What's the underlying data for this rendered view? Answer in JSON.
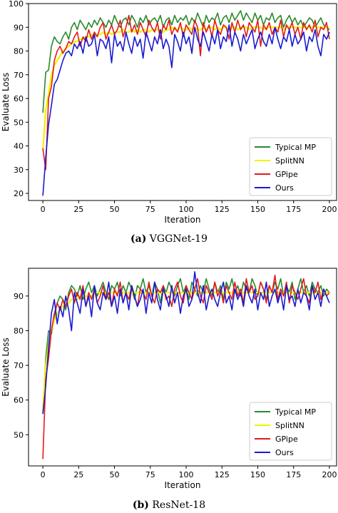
{
  "captions": [
    {
      "letter": "(a)",
      "text": "VGGNet-19"
    },
    {
      "letter": "(b)",
      "text": "ResNet-18"
    }
  ],
  "series_colors": {
    "Typical MP": "#2a8a2a",
    "SplitNN": "#f2f200",
    "GPipe": "#e21a1a",
    "Ours": "#1a1ad0"
  },
  "chart_data": [
    {
      "type": "line",
      "title": "",
      "xlabel": "Iteration",
      "ylabel": "Evaluate Loss",
      "xlim": [
        -10,
        205
      ],
      "ylim": [
        17,
        100
      ],
      "xticks": [
        0,
        25,
        50,
        75,
        100,
        125,
        150,
        175,
        200
      ],
      "yticks": [
        20,
        30,
        40,
        50,
        60,
        70,
        80,
        90,
        100
      ],
      "legend_position": "lower-right",
      "x_note": "values sampled every 2 iterations, from 0 to 200",
      "series": [
        {
          "name": "Typical MP",
          "color": "#2a8a2a",
          "values": [
            54,
            71,
            72,
            82,
            86,
            84,
            83,
            86,
            88,
            85,
            90,
            92,
            89,
            93,
            91,
            89,
            92,
            90,
            93,
            91,
            94,
            92,
            90,
            93,
            91,
            95,
            92,
            90,
            93,
            94,
            91,
            95,
            93,
            90,
            94,
            92,
            95,
            91,
            93,
            94,
            92,
            95,
            90,
            93,
            94,
            91,
            95,
            92,
            94,
            93,
            95,
            91,
            94,
            92,
            96,
            93,
            90,
            95,
            92,
            94,
            93,
            96,
            91,
            94,
            95,
            92,
            96,
            93,
            95,
            97,
            93,
            96,
            94,
            92,
            96,
            93,
            95,
            91,
            94,
            93,
            96,
            92,
            94,
            95,
            90,
            93,
            95,
            92,
            94,
            91,
            93,
            90,
            92,
            94,
            93,
            90,
            92,
            94,
            91,
            90,
            89
          ]
        },
        {
          "name": "SplitNN",
          "color": "#f2f200",
          "values": [
            38,
            55,
            62,
            70,
            74,
            76,
            78,
            80,
            81,
            82,
            83,
            84,
            84,
            85,
            85,
            86,
            86,
            87,
            86,
            87,
            87,
            88,
            87,
            88,
            87,
            88,
            88,
            88,
            89,
            88,
            88,
            89,
            88,
            89,
            88,
            89,
            89,
            88,
            89,
            89,
            89,
            89,
            88,
            89,
            89,
            90,
            89,
            89,
            90,
            89,
            89,
            90,
            89,
            90,
            89,
            89,
            90,
            89,
            90,
            90,
            89,
            90,
            89,
            90,
            90,
            89,
            90,
            90,
            89,
            90,
            90,
            90,
            89,
            90,
            90,
            90,
            90,
            89,
            90,
            90,
            90,
            90,
            90,
            90,
            89,
            90,
            90,
            90,
            90,
            90,
            90,
            90,
            90,
            90,
            90,
            90,
            90,
            90,
            90,
            90,
            90
          ]
        },
        {
          "name": "GPipe",
          "color": "#e21a1a",
          "values": [
            39,
            30,
            60,
            65,
            76,
            80,
            82,
            79,
            81,
            84,
            83,
            86,
            88,
            82,
            86,
            84,
            89,
            85,
            88,
            86,
            90,
            92,
            85,
            88,
            91,
            87,
            89,
            93,
            86,
            90,
            95,
            88,
            91,
            87,
            92,
            89,
            86,
            93,
            90,
            88,
            92,
            85,
            91,
            89,
            93,
            87,
            90,
            88,
            92,
            86,
            91,
            89,
            87,
            93,
            90,
            78,
            92,
            88,
            91,
            86,
            93,
            89,
            87,
            91,
            90,
            85,
            92,
            88,
            93,
            89,
            91,
            86,
            92,
            90,
            88,
            93,
            82,
            91,
            89,
            92,
            87,
            90,
            88,
            93,
            86,
            91,
            89,
            92,
            87,
            90,
            85,
            92,
            89,
            91,
            88,
            93,
            86,
            90,
            89,
            92,
            85
          ]
        },
        {
          "name": "Ours",
          "color": "#1a1ad0",
          "values": [
            19,
            35,
            49,
            57,
            66,
            68,
            72,
            76,
            79,
            80,
            78,
            83,
            81,
            84,
            79,
            86,
            82,
            83,
            87,
            78,
            85,
            84,
            81,
            86,
            75,
            87,
            82,
            84,
            80,
            88,
            83,
            79,
            86,
            82,
            85,
            77,
            88,
            84,
            80,
            86,
            83,
            89,
            81,
            85,
            82,
            73,
            87,
            84,
            80,
            88,
            83,
            86,
            79,
            90,
            85,
            82,
            88,
            84,
            80,
            87,
            83,
            89,
            81,
            86,
            84,
            91,
            82,
            88,
            85,
            80,
            87,
            83,
            86,
            89,
            81,
            85,
            88,
            84,
            82,
            87,
            83,
            90,
            85,
            81,
            86,
            84,
            89,
            82,
            87,
            83,
            85,
            88,
            80,
            86,
            84,
            89,
            82,
            78,
            87,
            85,
            88
          ]
        }
      ]
    },
    {
      "type": "line",
      "title": "",
      "xlabel": "Iteration",
      "ylabel": "Evaluate Loss",
      "xlim": [
        -10,
        205
      ],
      "ylim": [
        41,
        98
      ],
      "xticks": [
        0,
        25,
        50,
        75,
        100,
        125,
        150,
        175,
        200
      ],
      "yticks": [
        50,
        60,
        70,
        80,
        90
      ],
      "legend_position": "lower-right",
      "x_note": "values sampled every 2 iterations, from 0 to 200",
      "series": [
        {
          "name": "Typical MP",
          "color": "#2a8a2a",
          "values": [
            56,
            72,
            80,
            79,
            84,
            88,
            90,
            89,
            86,
            91,
            93,
            92,
            90,
            93,
            89,
            92,
            94,
            91,
            93,
            90,
            92,
            94,
            91,
            89,
            93,
            92,
            94,
            90,
            93,
            91,
            94,
            92,
            89,
            93,
            92,
            95,
            91,
            93,
            90,
            94,
            92,
            88,
            93,
            91,
            94,
            92,
            90,
            93,
            95,
            91,
            93,
            89,
            94,
            92,
            90,
            93,
            91,
            95,
            92,
            90,
            94,
            91,
            93,
            89,
            94,
            92,
            95,
            91,
            93,
            90,
            94,
            92,
            91,
            95,
            93,
            90,
            94,
            92,
            89,
            93,
            91,
            94,
            92,
            95,
            90,
            93,
            91,
            94,
            89,
            92,
            95,
            91,
            93,
            90,
            94,
            92,
            91,
            93,
            90,
            92,
            91
          ]
        },
        {
          "name": "SplitNN",
          "color": "#f2f200",
          "values": [
            57,
            70,
            76,
            80,
            83,
            85,
            86,
            87,
            88,
            88,
            89,
            89,
            89,
            90,
            90,
            90,
            90,
            90,
            91,
            91,
            91,
            91,
            91,
            91,
            91,
            91,
            91,
            91,
            91,
            91,
            91,
            91,
            91,
            91,
            91,
            91,
            91,
            91,
            91,
            91,
            91,
            91,
            91,
            91,
            91,
            91,
            91,
            91,
            91,
            91,
            91,
            91,
            91,
            91,
            91,
            91,
            91,
            91,
            91,
            91,
            91,
            91,
            91,
            91,
            91,
            91,
            91,
            91,
            91,
            91,
            91,
            91,
            91,
            91,
            91,
            91,
            91,
            91,
            91,
            91,
            91,
            91,
            91,
            91,
            91,
            91,
            91,
            91,
            91,
            91,
            91,
            91,
            91,
            91,
            91,
            91,
            91,
            91,
            91,
            91,
            91
          ]
        },
        {
          "name": "GPipe",
          "color": "#e21a1a",
          "values": [
            43,
            66,
            72,
            80,
            85,
            88,
            86,
            89,
            87,
            90,
            92,
            88,
            91,
            89,
            93,
            87,
            91,
            89,
            92,
            88,
            90,
            93,
            89,
            91,
            87,
            92,
            90,
            94,
            88,
            91,
            89,
            93,
            90,
            87,
            92,
            91,
            89,
            94,
            90,
            88,
            92,
            91,
            93,
            89,
            90,
            87,
            92,
            94,
            90,
            88,
            93,
            91,
            89,
            92,
            95,
            90,
            88,
            93,
            91,
            89,
            94,
            90,
            92,
            88,
            93,
            91,
            89,
            94,
            90,
            92,
            88,
            95,
            91,
            93,
            89,
            90,
            94,
            92,
            88,
            93,
            91,
            96,
            89,
            92,
            90,
            94,
            88,
            93,
            91,
            89,
            92,
            95,
            90,
            88,
            93,
            91,
            94,
            89,
            92,
            90,
            91
          ]
        },
        {
          "name": "Ours",
          "color": "#1a1ad0",
          "values": [
            56,
            64,
            75,
            85,
            89,
            82,
            87,
            84,
            90,
            86,
            80,
            91,
            88,
            85,
            92,
            87,
            90,
            84,
            93,
            88,
            86,
            91,
            89,
            94,
            87,
            90,
            85,
            92,
            88,
            91,
            86,
            93,
            90,
            87,
            89,
            92,
            85,
            91,
            88,
            94,
            89,
            86,
            92,
            90,
            87,
            93,
            88,
            91,
            85,
            90,
            92,
            87,
            89,
            97,
            91,
            88,
            93,
            86,
            90,
            92,
            89,
            87,
            91,
            94,
            88,
            90,
            86,
            92,
            89,
            91,
            87,
            93,
            90,
            88,
            92,
            86,
            91,
            89,
            94,
            87,
            90,
            92,
            88,
            91,
            86,
            93,
            89,
            90,
            87,
            92,
            88,
            91,
            90,
            86,
            93,
            89,
            91,
            87,
            92,
            90,
            88
          ]
        }
      ]
    }
  ]
}
